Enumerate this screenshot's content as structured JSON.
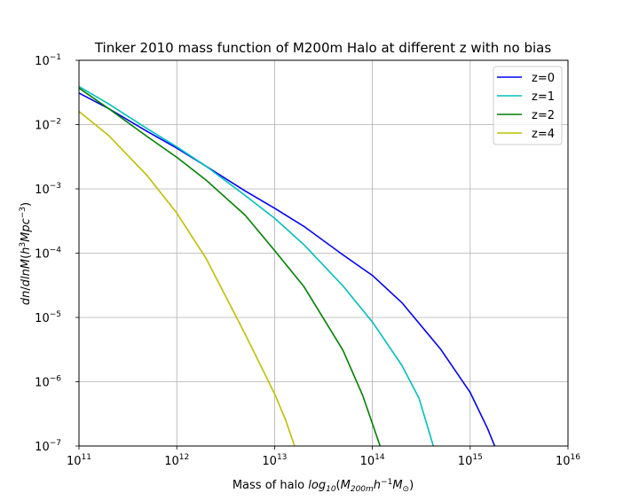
{
  "chart_data": {
    "type": "line",
    "title": "Tinker 2010 mass function of M200m Halo at different z with no bias",
    "xlabel": {
      "prefix": "Mass of halo ",
      "math": "log10(M200m h^-1 M_sun)"
    },
    "ylabel": {
      "math": "dn/dlnM(h^3 Mpc^-3)"
    },
    "xscale": "log",
    "yscale": "log",
    "xlim": [
      100000000000.0,
      1e+16
    ],
    "ylim": [
      1e-07,
      0.1
    ],
    "x_ticks": [
      {
        "base": "10",
        "exp": "11"
      },
      {
        "base": "10",
        "exp": "12"
      },
      {
        "base": "10",
        "exp": "13"
      },
      {
        "base": "10",
        "exp": "14"
      },
      {
        "base": "10",
        "exp": "15"
      },
      {
        "base": "10",
        "exp": "16"
      }
    ],
    "y_ticks": [
      {
        "base": "10",
        "exp": "−7"
      },
      {
        "base": "10",
        "exp": "−6"
      },
      {
        "base": "10",
        "exp": "−5"
      },
      {
        "base": "10",
        "exp": "−4"
      },
      {
        "base": "10",
        "exp": "−3"
      },
      {
        "base": "10",
        "exp": "−2"
      },
      {
        "base": "10",
        "exp": "−1"
      }
    ],
    "grid": true,
    "legend_position": "top-right",
    "series": [
      {
        "name": "z=0",
        "color": "#0000ff",
        "points": [
          [
            100000000000.0,
            0.031
          ],
          [
            200000000000.0,
            0.0178
          ],
          [
            500000000000.0,
            0.0078
          ],
          [
            1000000000000.0,
            0.0043
          ],
          [
            2000000000000.0,
            0.00224
          ],
          [
            5000000000000.0,
            0.00093
          ],
          [
            10000000000000.0,
            0.0005
          ],
          [
            20000000000000.0,
            0.00026
          ],
          [
            50000000000000.0,
            9.4e-05
          ],
          [
            100000000000000.0,
            4.5e-05
          ],
          [
            200000000000000.0,
            1.7e-05
          ],
          [
            500000000000000.0,
            3.2e-06
          ],
          [
            1000000000000000.0,
            6.8e-07
          ],
          [
            1500000000000000.0,
            1.9e-07
          ],
          [
            1780000000000000.0,
            1e-07
          ]
        ]
      },
      {
        "name": "z=1",
        "color": "#00bfbf",
        "points": [
          [
            100000000000.0,
            0.039
          ],
          [
            200000000000.0,
            0.021
          ],
          [
            500000000000.0,
            0.0086
          ],
          [
            1000000000000.0,
            0.0045
          ],
          [
            2000000000000.0,
            0.00224
          ],
          [
            5000000000000.0,
            0.00079
          ],
          [
            10000000000000.0,
            0.00035
          ],
          [
            20000000000000.0,
            0.000135
          ],
          [
            50000000000000.0,
            3.1e-05
          ],
          [
            100000000000000.0,
            8.5e-06
          ],
          [
            200000000000000.0,
            1.8e-06
          ],
          [
            300000000000000.0,
            5.5e-07
          ],
          [
            420000000000000.0,
            1e-07
          ]
        ]
      },
      {
        "name": "z=2",
        "color": "#008000",
        "points": [
          [
            100000000000.0,
            0.037
          ],
          [
            200000000000.0,
            0.0178
          ],
          [
            500000000000.0,
            0.0065
          ],
          [
            1000000000000.0,
            0.0031
          ],
          [
            2000000000000.0,
            0.00136
          ],
          [
            5000000000000.0,
            0.00039
          ],
          [
            10000000000000.0,
            0.00011
          ],
          [
            20000000000000.0,
            3e-05
          ],
          [
            50000000000000.0,
            3.1e-06
          ],
          [
            80000000000000.0,
            6e-07
          ],
          [
            120000000000000.0,
            1e-07
          ]
        ]
      },
      {
        "name": "z=4",
        "color": "#bfbf00",
        "points": [
          [
            100000000000.0,
            0.016
          ],
          [
            200000000000.0,
            0.0068
          ],
          [
            500000000000.0,
            0.0016
          ],
          [
            1000000000000.0,
            0.00042
          ],
          [
            2000000000000.0,
            8.2e-05
          ],
          [
            5000000000000.0,
            5.5e-06
          ],
          [
            10000000000000.0,
            6.5e-07
          ],
          [
            13000000000000.0,
            2.5e-07
          ],
          [
            16000000000000.0,
            1e-07
          ]
        ]
      }
    ]
  }
}
